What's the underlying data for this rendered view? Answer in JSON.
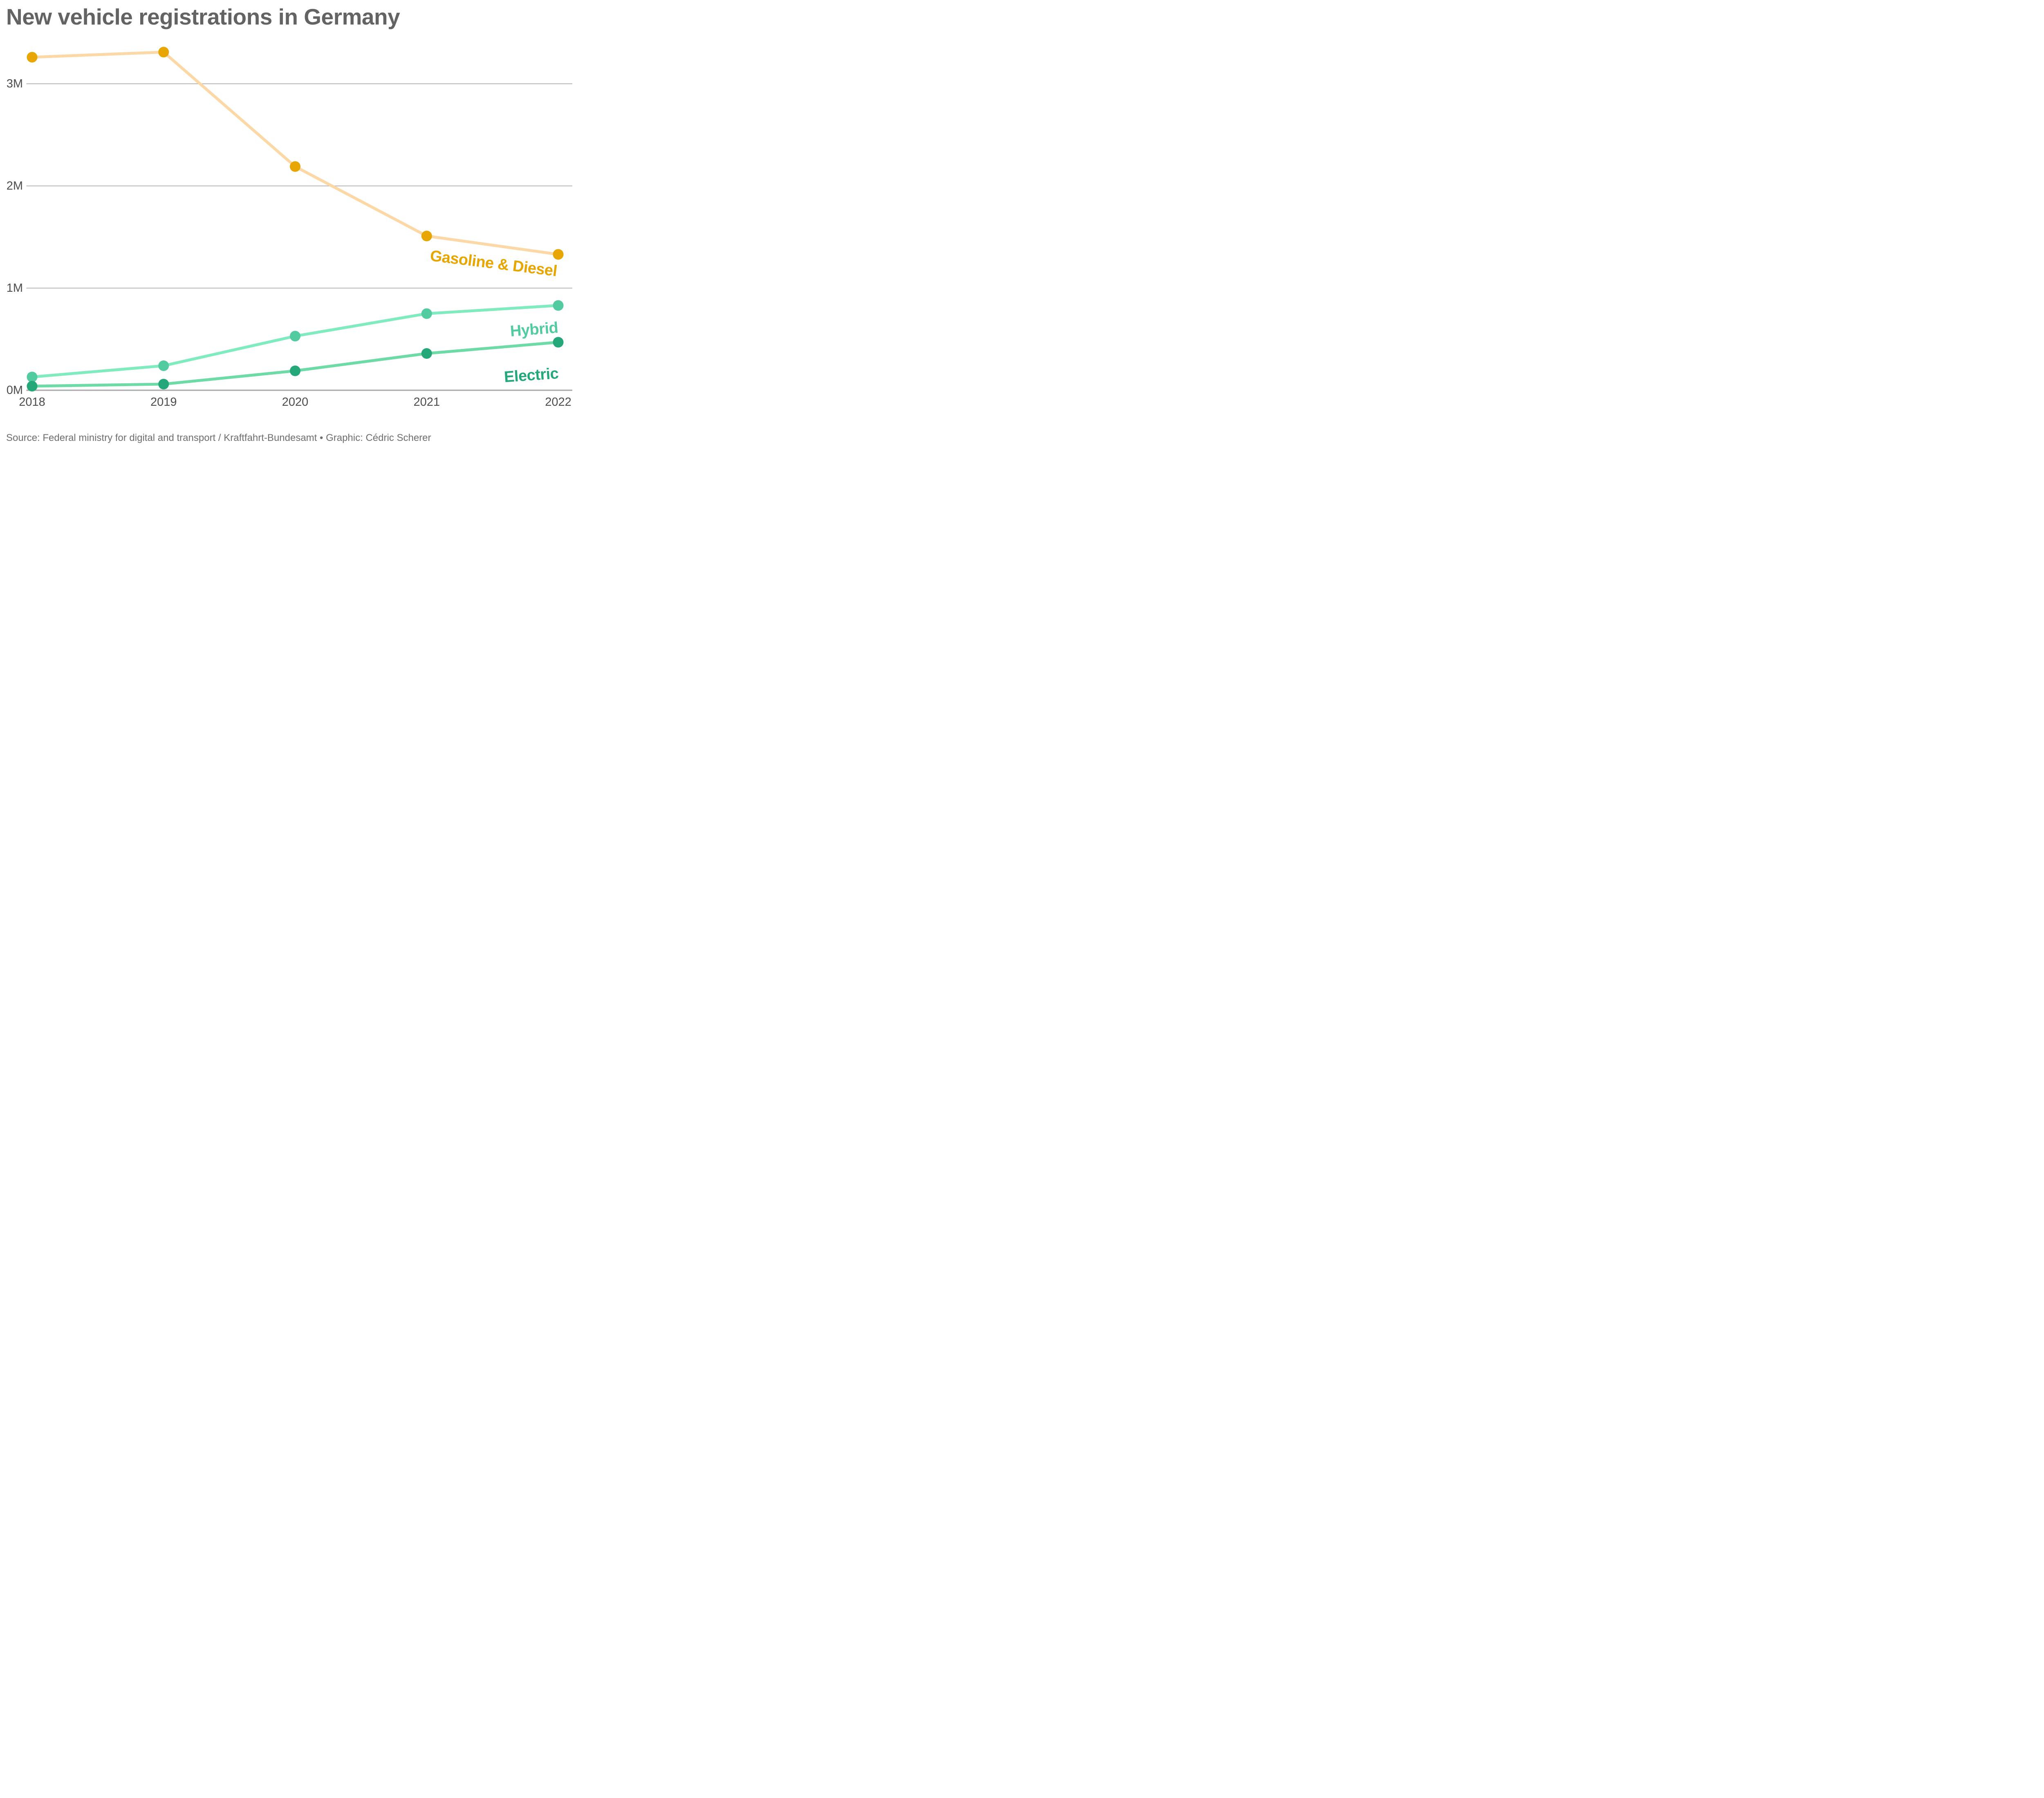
{
  "title": "New vehicle registrations in Germany",
  "caption": "Source: Federal ministry for digital and transport / Kraftfahrt-Bundesamt • Graphic: Cédric Scherer",
  "colors": {
    "background": "#ffffff",
    "title_text": "#636363",
    "tick_text": "#4d4d4d",
    "caption_text": "#6e6e6e",
    "gridline": "#b7b7b7",
    "axis_line": "#a6a6a6"
  },
  "chart_data": {
    "type": "line",
    "title": "New vehicle registrations in Germany",
    "xlabel": "",
    "ylabel": "",
    "unit": "millions of vehicles",
    "x": [
      "2018",
      "2019",
      "2020",
      "2021",
      "2022"
    ],
    "series": [
      {
        "name": "Gasoline & Diesel",
        "values": [
          3.26,
          3.31,
          2.19,
          1.51,
          1.33
        ],
        "line_color": "#fcd8a6",
        "point_color": "#e7a602",
        "label_color": "#e7a602"
      },
      {
        "name": "Hybrid",
        "values": [
          0.13,
          0.24,
          0.53,
          0.75,
          0.83
        ],
        "line_color": "#81ebc0",
        "point_color": "#53cba0",
        "label_color": "#53cba0"
      },
      {
        "name": "Electric",
        "values": [
          0.04,
          0.06,
          0.19,
          0.36,
          0.47
        ],
        "line_color": "#6edaa6",
        "point_color": "#24a87a",
        "label_color": "#24a87a"
      }
    ],
    "yticks": [
      {
        "value": 0,
        "label": "0M"
      },
      {
        "value": 1,
        "label": "1M"
      },
      {
        "value": 2,
        "label": "2M"
      },
      {
        "value": 3,
        "label": "3M"
      }
    ],
    "ylim": [
      0,
      3.4
    ],
    "grid": "horizontal",
    "legend": "direct-labels-right"
  }
}
